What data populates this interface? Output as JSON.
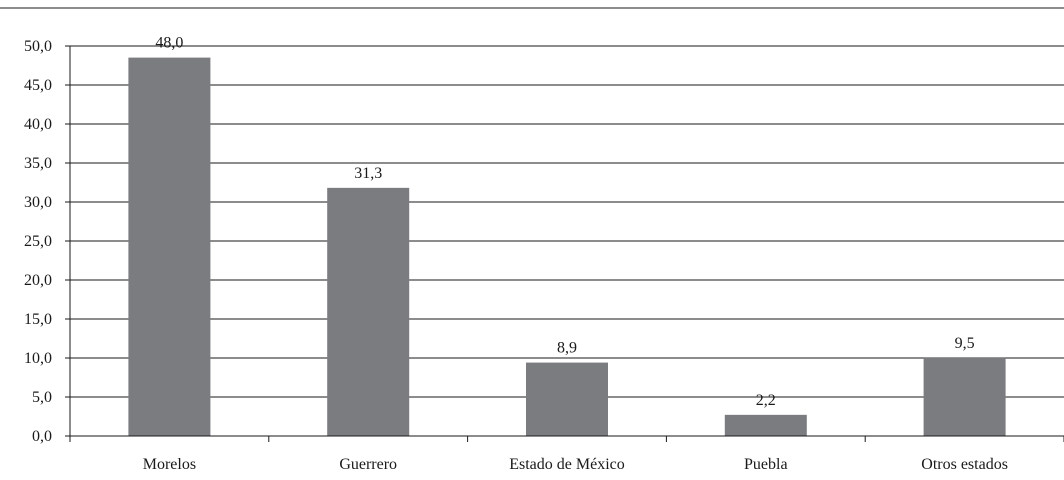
{
  "chart_data": {
    "type": "bar",
    "categories": [
      "Morelos",
      "Guerrero",
      "Estado de México",
      "Puebla",
      "Otros estados"
    ],
    "values": [
      48.0,
      31.3,
      8.9,
      2.2,
      9.5
    ],
    "value_labels": [
      "48,0",
      "31,3",
      "8,9",
      "2,2",
      "9,5"
    ],
    "y_ticks": [
      "0,0",
      "5,0",
      "10,0",
      "15,0",
      "20,0",
      "25,0",
      "30,0",
      "35,0",
      "40,0",
      "45,0",
      "50,0"
    ],
    "ylim": [
      0,
      50
    ],
    "grid": true,
    "colors": {
      "bar": "#7b7c80",
      "grid": "#1a1a1a",
      "text": "#1a1a1a"
    }
  }
}
